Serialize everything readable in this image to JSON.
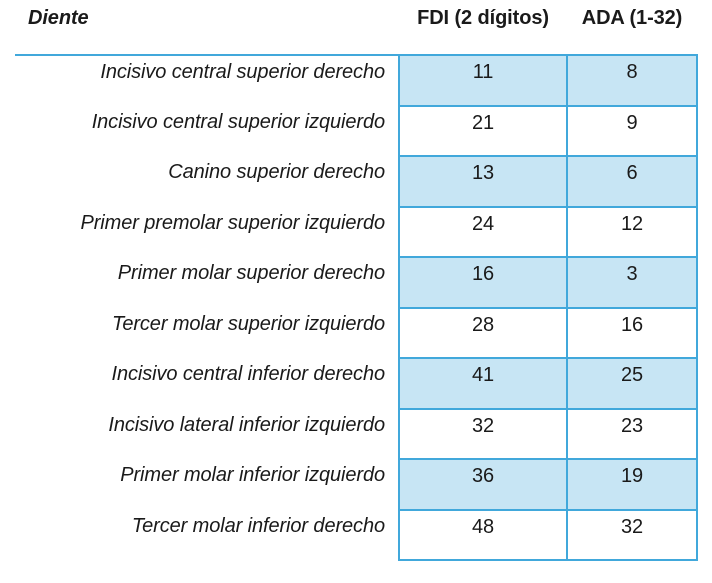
{
  "table": {
    "columns": [
      {
        "id": "diente",
        "label": "Diente"
      },
      {
        "id": "fdi",
        "label": "FDI (2 dígitos)"
      },
      {
        "id": "ada",
        "label": "ADA (1-32)"
      }
    ],
    "rows": [
      {
        "tooth": "Incisivo central superior derecho",
        "fdi": "11",
        "ada": "8"
      },
      {
        "tooth": "Incisivo central superior izquierdo",
        "fdi": "21",
        "ada": "9"
      },
      {
        "tooth": "Canino superior derecho",
        "fdi": "13",
        "ada": "6"
      },
      {
        "tooth": "Primer premolar superior izquierdo",
        "fdi": "24",
        "ada": "12"
      },
      {
        "tooth": "Primer molar superior derecho",
        "fdi": "16",
        "ada": "3"
      },
      {
        "tooth": "Tercer molar superior izquierdo",
        "fdi": "28",
        "ada": "16"
      },
      {
        "tooth": "Incisivo central inferior derecho",
        "fdi": "41",
        "ada": "25"
      },
      {
        "tooth": "Incisivo lateral inferior izquierdo",
        "fdi": "32",
        "ada": "23"
      },
      {
        "tooth": "Primer molar inferior izquierdo",
        "fdi": "36",
        "ada": "19"
      },
      {
        "tooth": "Tercer molar inferior derecho",
        "fdi": "48",
        "ada": "32"
      }
    ],
    "colors": {
      "row_fill": "#C7E5F4",
      "border": "#41A8DB",
      "text": "#1A1A1A",
      "background": "#FFFFFF"
    }
  }
}
